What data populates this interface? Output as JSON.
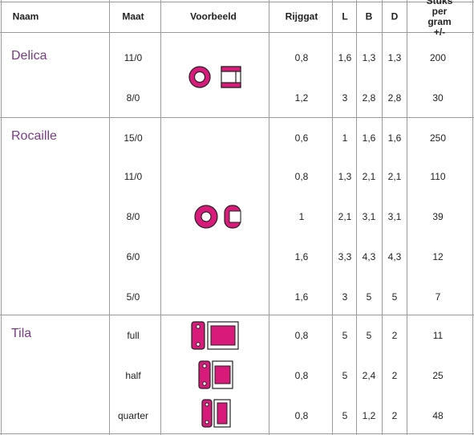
{
  "colors": {
    "bead": "#d81b7a",
    "group_name": "#7a3b85",
    "grid": "#9a9a9a"
  },
  "headers": {
    "naam": "Naam",
    "maat": "Maat",
    "voorbeeld": "Voorbeeld",
    "rijggat": "Rijggat",
    "l": "L",
    "b": "B",
    "d": "D",
    "stuks_line1": "Stuks per",
    "stuks_line2": "gram +/-"
  },
  "groups": [
    {
      "name": "Delica",
      "icon": "delica-bead-icon",
      "rows": [
        {
          "maat": "11/0",
          "rijggat": "0,8",
          "l": "1,6",
          "b": "1,3",
          "d": "1,3",
          "stuks": "200"
        },
        {
          "maat": "8/0",
          "rijggat": "1,2",
          "l": "3",
          "b": "2,8",
          "d": "2,8",
          "stuks": "30"
        }
      ]
    },
    {
      "name": "Rocaille",
      "icon": "rocaille-bead-icon",
      "rows": [
        {
          "maat": "15/0",
          "rijggat": "0,6",
          "l": "1",
          "b": "1,6",
          "d": "1,6",
          "stuks": "250"
        },
        {
          "maat": "11/0",
          "rijggat": "0,8",
          "l": "1,3",
          "b": "2,1",
          "d": "2,1",
          "stuks": "110"
        },
        {
          "maat": "8/0",
          "rijggat": "1",
          "l": "2,1",
          "b": "3,1",
          "d": "3,1",
          "stuks": "39"
        },
        {
          "maat": "6/0",
          "rijggat": "1,6",
          "l": "3,3",
          "b": "4,3",
          "d": "4,3",
          "stuks": "12"
        },
        {
          "maat": "5/0",
          "rijggat": "1,6",
          "l": "3",
          "b": "5",
          "d": "5",
          "stuks": "7"
        }
      ]
    },
    {
      "name": "Tila",
      "icon": "tila-bead-icon",
      "rows": [
        {
          "maat": "full",
          "rijggat": "0,8",
          "l": "5",
          "b": "5",
          "d": "2",
          "stuks": "11"
        },
        {
          "maat": "half",
          "rijggat": "0,8",
          "l": "5",
          "b": "2,4",
          "d": "2",
          "stuks": "25"
        },
        {
          "maat": "quarter",
          "rijggat": "0,8",
          "l": "5",
          "b": "1,2",
          "d": "2",
          "stuks": "48"
        }
      ]
    }
  ]
}
